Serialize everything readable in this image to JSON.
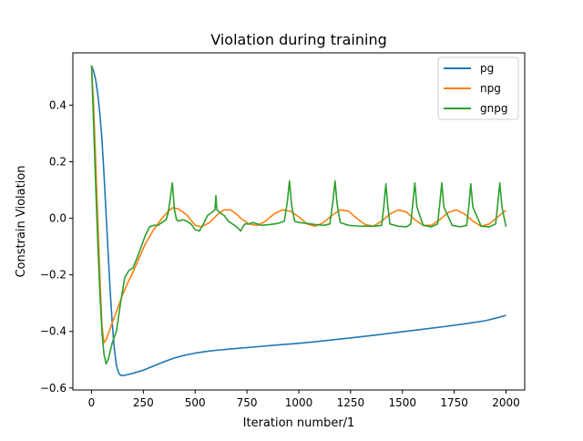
{
  "chart_data": {
    "type": "line",
    "title": "Violation during training",
    "xlabel": "Iteration number/1",
    "ylabel": "Constrain Violation",
    "xlim": [
      -90,
      2090
    ],
    "ylim": [
      -0.607,
      0.585
    ],
    "xticks": [
      0,
      250,
      500,
      750,
      1000,
      1250,
      1500,
      1750,
      2000
    ],
    "xtick_labels": [
      "0",
      "250",
      "500",
      "750",
      "1000",
      "1250",
      "1500",
      "1750",
      "2000"
    ],
    "yticks": [
      -0.6,
      -0.4,
      -0.2,
      0.0,
      0.2,
      0.4
    ],
    "ytick_labels": [
      "−0.6",
      "−0.4",
      "−0.2",
      "0.0",
      "0.2",
      "0.4"
    ],
    "grid": false,
    "legend_position": "upper right",
    "series": [
      {
        "name": "pg",
        "color": "#1f77b4",
        "x": [
          0,
          10,
          20,
          30,
          40,
          50,
          60,
          70,
          80,
          90,
          100,
          110,
          120,
          130,
          140,
          150,
          160,
          200,
          250,
          300,
          350,
          400,
          450,
          500,
          550,
          600,
          700,
          800,
          900,
          1000,
          1100,
          1200,
          1300,
          1400,
          1500,
          1600,
          1700,
          1800,
          1900,
          1950,
          2000
        ],
        "y": [
          0.54,
          0.52,
          0.49,
          0.44,
          0.37,
          0.28,
          0.16,
          0.02,
          -0.12,
          -0.26,
          -0.37,
          -0.46,
          -0.52,
          -0.545,
          -0.555,
          -0.556,
          -0.555,
          -0.548,
          -0.537,
          -0.522,
          -0.507,
          -0.494,
          -0.484,
          -0.477,
          -0.471,
          -0.467,
          -0.46,
          -0.454,
          -0.448,
          -0.442,
          -0.435,
          -0.427,
          -0.419,
          -0.41,
          -0.401,
          -0.392,
          -0.383,
          -0.373,
          -0.362,
          -0.353,
          -0.343
        ]
      },
      {
        "name": "npg",
        "color": "#ff7f0e",
        "x": [
          0,
          10,
          20,
          30,
          40,
          50,
          60,
          70,
          80,
          100,
          120,
          150,
          180,
          200,
          230,
          260,
          300,
          340,
          370,
          390,
          420,
          460,
          500,
          530,
          570,
          610,
          640,
          670,
          700,
          720,
          760,
          800,
          840,
          880,
          920,
          960,
          1000,
          1040,
          1080,
          1120,
          1160,
          1200,
          1240,
          1280,
          1320,
          1360,
          1400,
          1440,
          1480,
          1520,
          1560,
          1600,
          1640,
          1680,
          1720,
          1760,
          1800,
          1840,
          1880,
          1920,
          1960,
          2000
        ],
        "y": [
          0.54,
          0.4,
          0.2,
          0.0,
          -0.2,
          -0.38,
          -0.44,
          -0.43,
          -0.41,
          -0.37,
          -0.33,
          -0.27,
          -0.22,
          -0.19,
          -0.14,
          -0.09,
          -0.04,
          0.0,
          0.025,
          0.037,
          0.033,
          0.012,
          -0.025,
          -0.03,
          -0.015,
          0.015,
          0.03,
          0.03,
          0.015,
          0.0,
          -0.02,
          -0.025,
          -0.01,
          0.015,
          0.03,
          0.025,
          0.005,
          -0.02,
          -0.028,
          -0.015,
          0.01,
          0.03,
          0.025,
          0.0,
          -0.022,
          -0.028,
          -0.01,
          0.015,
          0.03,
          0.022,
          -0.005,
          -0.025,
          -0.025,
          -0.005,
          0.02,
          0.03,
          0.015,
          -0.01,
          -0.028,
          -0.02,
          0.005,
          0.028
        ]
      },
      {
        "name": "gnpg",
        "color": "#2ca02c",
        "x": [
          0,
          10,
          20,
          30,
          40,
          50,
          60,
          70,
          80,
          90,
          100,
          110,
          120,
          140,
          160,
          180,
          200,
          220,
          240,
          260,
          280,
          300,
          320,
          340,
          360,
          370,
          380,
          390,
          400,
          410,
          420,
          440,
          460,
          480,
          500,
          520,
          540,
          560,
          580,
          595,
          600,
          605,
          620,
          640,
          660,
          680,
          700,
          720,
          730,
          740,
          760,
          780,
          800,
          820,
          860,
          900,
          930,
          945,
          955,
          965,
          980,
          1000,
          1040,
          1080,
          1120,
          1150,
          1165,
          1175,
          1185,
          1200,
          1240,
          1280,
          1320,
          1360,
          1400,
          1410,
          1420,
          1430,
          1440,
          1480,
          1520,
          1540,
          1550,
          1560,
          1570,
          1600,
          1640,
          1670,
          1680,
          1690,
          1700,
          1740,
          1780,
          1810,
          1820,
          1830,
          1840,
          1880,
          1920,
          1950,
          1960,
          1970,
          1980,
          2000
        ],
        "y": [
          0.54,
          0.33,
          0.12,
          -0.08,
          -0.26,
          -0.4,
          -0.48,
          -0.515,
          -0.5,
          -0.47,
          -0.44,
          -0.42,
          -0.4,
          -0.3,
          -0.21,
          -0.185,
          -0.175,
          -0.14,
          -0.1,
          -0.06,
          -0.03,
          -0.025,
          -0.025,
          -0.015,
          -0.005,
          0.02,
          0.07,
          0.125,
          0.03,
          -0.005,
          -0.01,
          -0.005,
          -0.01,
          -0.02,
          -0.04,
          -0.045,
          -0.02,
          0.01,
          0.02,
          0.03,
          0.08,
          0.03,
          0.02,
          0.01,
          -0.01,
          -0.02,
          -0.03,
          -0.045,
          -0.03,
          -0.02,
          -0.02,
          -0.015,
          -0.02,
          -0.025,
          -0.022,
          -0.018,
          -0.01,
          0.06,
          0.132,
          0.05,
          -0.01,
          -0.015,
          -0.018,
          -0.022,
          -0.025,
          -0.02,
          0.06,
          0.132,
          0.05,
          -0.015,
          -0.025,
          -0.027,
          -0.028,
          -0.028,
          -0.025,
          0.04,
          0.122,
          0.04,
          -0.02,
          -0.028,
          -0.03,
          -0.02,
          0.05,
          0.125,
          0.04,
          -0.025,
          -0.03,
          -0.02,
          0.05,
          0.125,
          0.04,
          -0.025,
          -0.03,
          -0.025,
          0.04,
          0.122,
          0.04,
          -0.028,
          -0.03,
          -0.02,
          0.05,
          0.125,
          0.04,
          -0.03
        ]
      }
    ]
  }
}
